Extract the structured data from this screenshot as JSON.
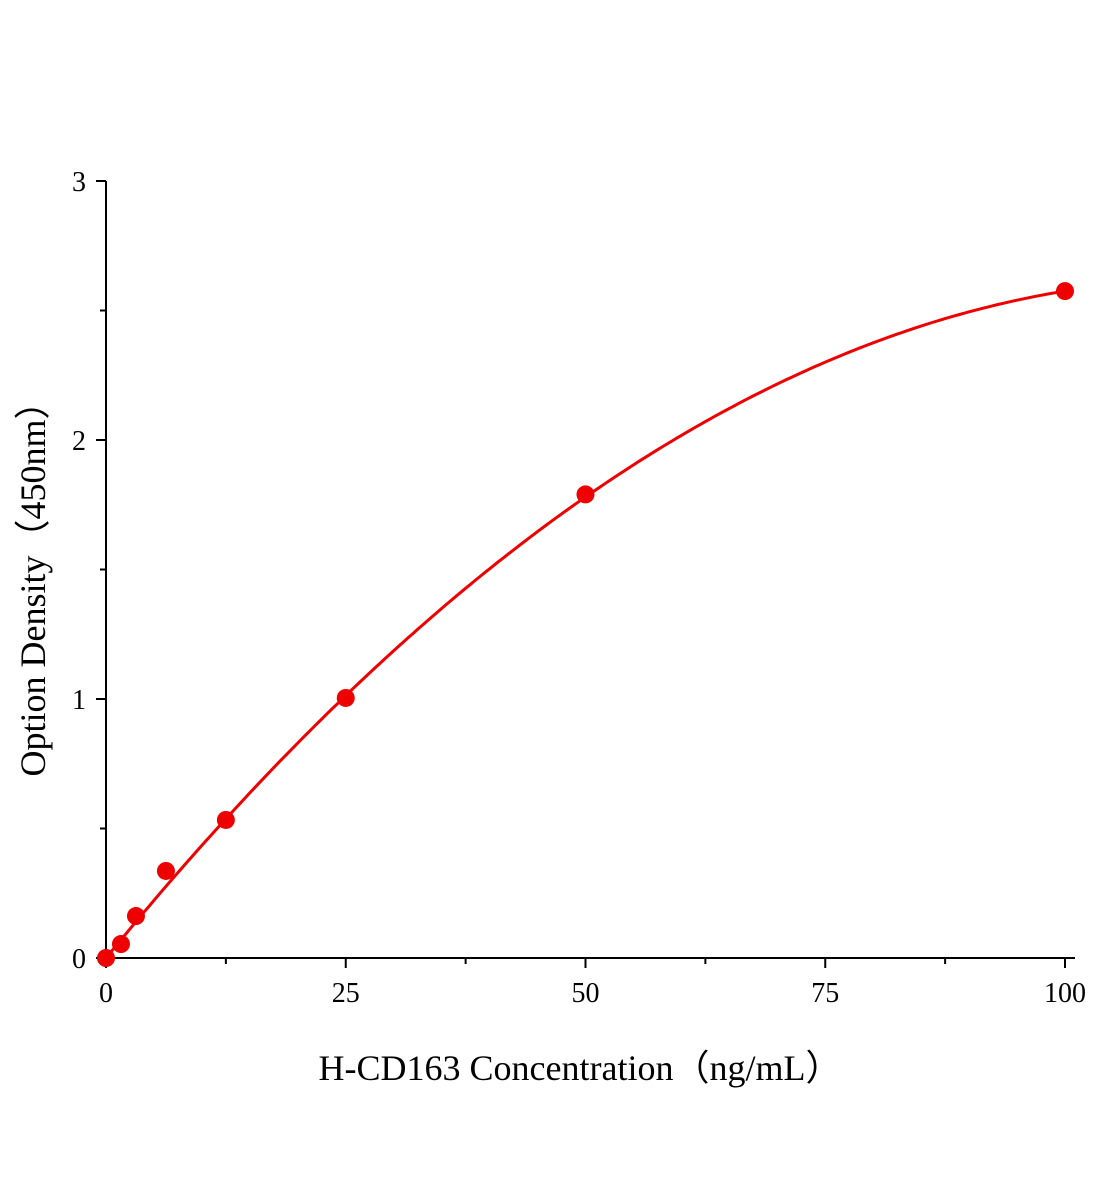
{
  "chart_data": {
    "type": "scatter",
    "title": "",
    "xlabel": "H-CD163 Concentration（ng/mL）",
    "ylabel": "Option Density（450nm）",
    "xlim": [
      0,
      100
    ],
    "ylim": [
      0,
      3
    ],
    "x_ticks": [
      0,
      25,
      50,
      75,
      100
    ],
    "x_tick_labels": [
      "0",
      "25",
      "50",
      "75",
      "100"
    ],
    "y_ticks": [
      0,
      1,
      2,
      3
    ],
    "y_tick_labels": [
      "0",
      "1",
      "2",
      "3"
    ],
    "x_minor_ticks": [
      12.5,
      37.5,
      62.5,
      87.5
    ],
    "y_minor_ticks": [
      0.5,
      1.5,
      2.5
    ],
    "grid": false,
    "legend": "none",
    "series": [
      {
        "x": [
          0,
          1.5625,
          3.125,
          6.25,
          12.5,
          25,
          50,
          100
        ],
        "y": [
          0.0,
          0.054,
          0.162,
          0.336,
          0.533,
          1.004,
          1.79,
          2.575
        ],
        "marker": "circle",
        "fit_curve": true
      }
    ],
    "colors": {
      "series": "#ee0000",
      "axes": "#000000"
    }
  }
}
